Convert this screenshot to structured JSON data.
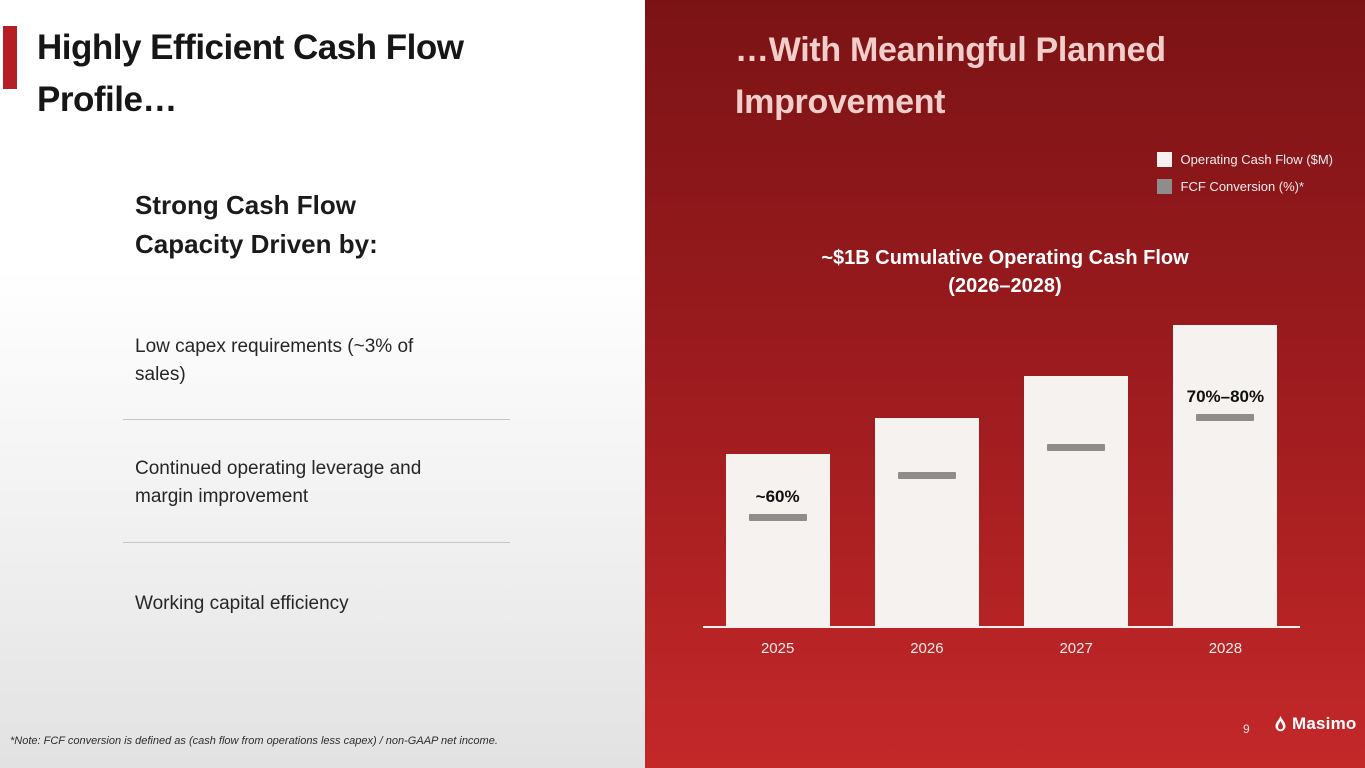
{
  "slide": {
    "left": {
      "title": "Highly Efficient Cash Flow Profile…",
      "subtitle": "Strong Cash Flow Capacity Driven by:",
      "bullets": [
        "Low capex requirements (~3% of sales)",
        "Continued operating leverage and margin improvement",
        "Working capital efficiency"
      ],
      "footnote": "*Note: FCF conversion is defined as (cash flow from operations less capex) / non-GAAP net income."
    },
    "right": {
      "title": "…With Meaningful Planned Improvement",
      "page_number": "9",
      "logo_text": "Masimo"
    }
  },
  "colors": {
    "accent_red": "#b51f24",
    "bg_red_top": "#7b1315",
    "bg_red_bottom": "#c42829",
    "bar_fill": "#f5f2f0",
    "marker_gray": "#8f8c8c",
    "right_title_pink": "#f2cecb"
  },
  "chart_data": {
    "type": "bar",
    "title": "~$1B Cumulative Operating Cash Flow (2026–2028)",
    "title_lines": [
      "~$1B Cumulative Operating Cash Flow",
      "(2026–2028)"
    ],
    "categories": [
      "2025",
      "2026",
      "2027",
      "2028"
    ],
    "series": [
      {
        "name": "Operating Cash Flow ($M)",
        "color": "#f5f2f0",
        "values_relative": [
          0.57,
          0.69,
          0.83,
          1.0
        ],
        "note": "no numeric axis shown; heights estimated relative to 2028 bar"
      },
      {
        "name": "FCF Conversion (%)*",
        "color": "#8f8c8c",
        "marker_labels": [
          "~60%",
          "",
          "",
          "70%–80%"
        ],
        "marker_heights_relative": [
          0.35,
          0.49,
          0.58,
          0.68
        ]
      }
    ],
    "legend_position": "top-right",
    "grid": false,
    "xlabel": "",
    "ylabel": ""
  }
}
